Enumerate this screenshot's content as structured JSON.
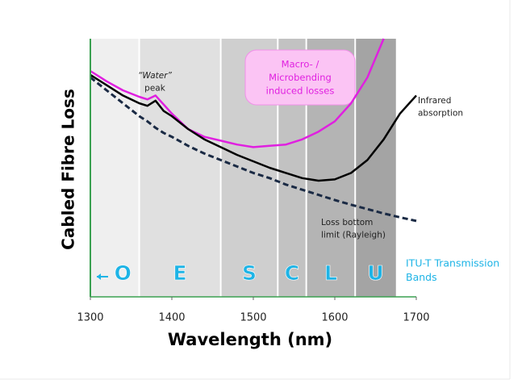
{
  "chart_data": {
    "type": "line",
    "xlabel": "Wavelength (nm)",
    "ylabel": "Cabled Fibre Loss",
    "xlim": [
      1300,
      1700
    ],
    "xticks": [
      1300,
      1400,
      1500,
      1600,
      1700
    ],
    "ylim": [
      0,
      100
    ],
    "x": [
      1300,
      1320,
      1340,
      1360,
      1370,
      1380,
      1390,
      1400,
      1420,
      1440,
      1460,
      1480,
      1500,
      1520,
      1540,
      1560,
      1580,
      1600,
      1620,
      1640,
      1660,
      1680,
      1700
    ],
    "series": [
      {
        "color": "#e020e0",
        "dashed": false,
        "values": [
          87.5,
          83.5,
          80,
          77.5,
          76.5,
          78,
          74.5,
          71,
          65,
          62,
          60.5,
          59,
          58,
          58.5,
          59,
          61,
          64,
          68,
          75,
          85,
          100,
          null,
          null
        ]
      },
      {
        "color": "#000000",
        "dashed": false,
        "values": [
          86,
          82,
          78,
          75,
          74,
          76,
          72,
          70,
          65,
          61,
          58,
          55,
          52.5,
          50,
          48,
          46,
          45,
          45.5,
          48,
          53,
          61,
          71,
          78
        ]
      },
      {
        "color": "#1a2a44",
        "dashed": true,
        "values": [
          85,
          80,
          75,
          70,
          68,
          65.5,
          63.5,
          62,
          58.5,
          55.5,
          53,
          50.5,
          48,
          46,
          43.5,
          41.5,
          39.5,
          37.5,
          35.7,
          34,
          32.3,
          30.8,
          29.4
        ]
      }
    ],
    "bands": [
      {
        "label": "O",
        "start": 1260,
        "end": 1360,
        "color": "#efefef"
      },
      {
        "label": "E",
        "start": 1360,
        "end": 1460,
        "color": "#e0e0e0"
      },
      {
        "label": "S",
        "start": 1460,
        "end": 1530,
        "color": "#cfcfcf"
      },
      {
        "label": "C",
        "start": 1530,
        "end": 1565,
        "color": "#c2c2c2"
      },
      {
        "label": "L",
        "start": 1565,
        "end": 1625,
        "color": "#b4b4b4"
      },
      {
        "label": "U",
        "start": 1625,
        "end": 1675,
        "color": "#a4a4a4"
      }
    ],
    "annotations": [
      {
        "lines": [
          "“Water”",
          "peak"
        ]
      },
      {
        "lines": [
          "Macro- /",
          "Microbending",
          "induced losses"
        ]
      },
      {
        "lines": [
          "Infrared",
          "absorption"
        ]
      },
      {
        "lines": [
          "Loss bottom",
          "limit (Rayleigh)"
        ]
      },
      {
        "lines": [
          "ITU-T Transmission",
          "Bands"
        ]
      }
    ]
  }
}
